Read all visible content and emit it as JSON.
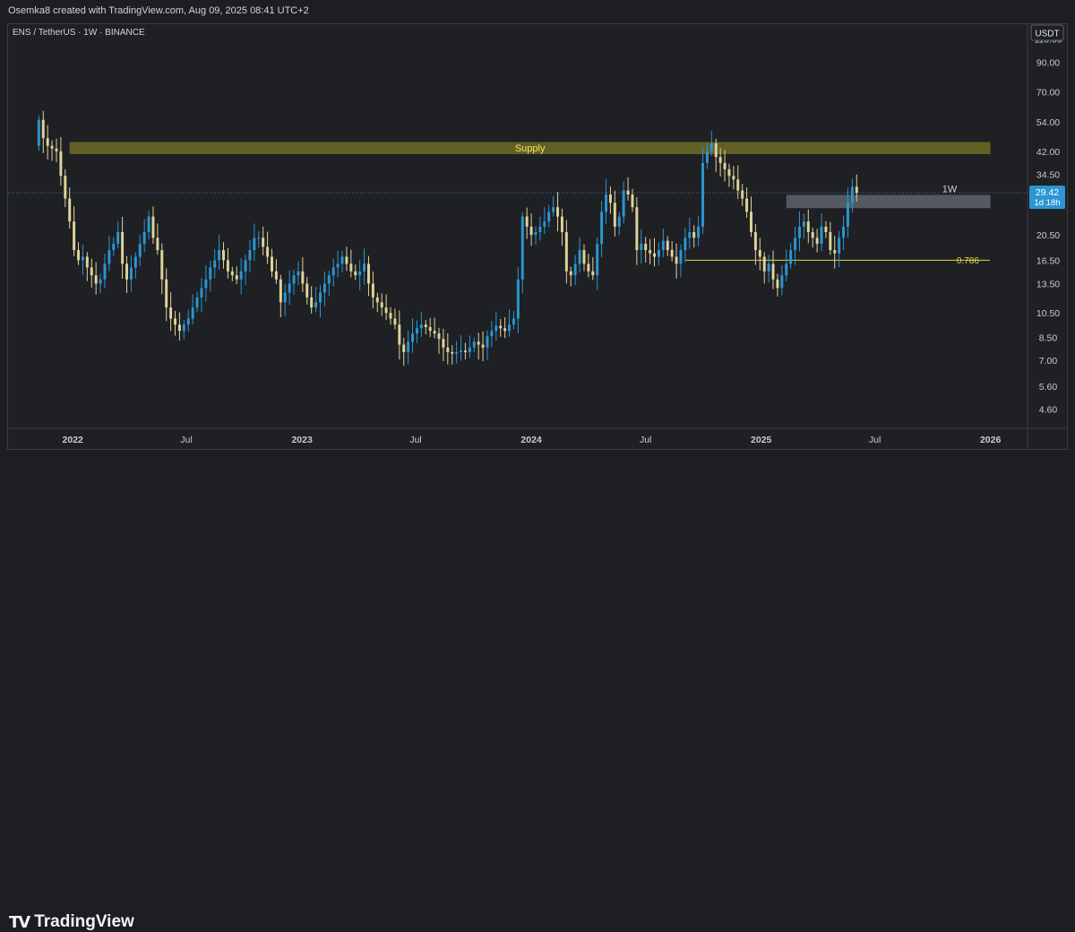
{
  "header": {
    "credit": "Osemka8 created with TradingView.com, Aug 09, 2025 08:41 UTC+2"
  },
  "footer": {
    "brand": "TradingView",
    "brand_icon": "tradingview-logo-icon"
  },
  "colors": {
    "up": "#2b96d3",
    "down": "#e0d39a",
    "background": "#1e2024",
    "supply": "#7d7a2a",
    "fib": "#e6d44a",
    "price_line": "#2b7bb9"
  },
  "chart_data": {
    "type": "candlestick",
    "title": "ENS / TetherUS · 1W · BINANCE",
    "currency": "USDT",
    "scale": "log",
    "ylim": [
      3.9,
      125
    ],
    "y_ticks": [
      110.0,
      90.0,
      70.0,
      54.0,
      42.0,
      34.5,
      20.5,
      16.5,
      13.5,
      10.5,
      8.5,
      7.0,
      5.6,
      4.6
    ],
    "x_ticks": [
      {
        "label": "2022",
        "date": "2022-01-01"
      },
      {
        "label": "Jul",
        "date": "2022-07-01"
      },
      {
        "label": "2023",
        "date": "2023-01-01"
      },
      {
        "label": "Jul",
        "date": "2023-07-01"
      },
      {
        "label": "2024",
        "date": "2024-01-01"
      },
      {
        "label": "Jul",
        "date": "2024-07-01"
      },
      {
        "label": "2025",
        "date": "2025-01-01"
      },
      {
        "label": "Jul",
        "date": "2025-07-01"
      },
      {
        "label": "2026",
        "date": "2026-01-01"
      }
    ],
    "xlim": [
      "2021-09-20",
      "2026-03-01"
    ],
    "series_start": "2021-11-08",
    "series_interval": "1W",
    "current_price": {
      "value": 29.42,
      "label": "29.42",
      "countdown": "1d 18h"
    },
    "closes": [
      55,
      47,
      44,
      43,
      42,
      34,
      28,
      23,
      18,
      16.5,
      17,
      15.5,
      14.5,
      13.5,
      14,
      16,
      18,
      19,
      21,
      16,
      14,
      15.5,
      17,
      19,
      21,
      24,
      20,
      18,
      14,
      11,
      10,
      9.5,
      9,
      9.5,
      10,
      11,
      12,
      13,
      14,
      15.5,
      16.5,
      18,
      16.5,
      15,
      14.5,
      14,
      15,
      16.5,
      18,
      20,
      20,
      18.5,
      17,
      15,
      14,
      11.5,
      12.5,
      13.5,
      14.5,
      15,
      13.5,
      12,
      11,
      11.5,
      12.5,
      13.5,
      14.5,
      15.5,
      16,
      17,
      16,
      15,
      14.5,
      15,
      16,
      13.5,
      12,
      11.5,
      11,
      10.5,
      10,
      9.5,
      8,
      7.5,
      8.2,
      8.8,
      9.2,
      9.5,
      9.3,
      9,
      8.8,
      8.4,
      7.8,
      7.5,
      7.4,
      7.5,
      7.6,
      7.5,
      7.8,
      8.2,
      8,
      7.8,
      8.6,
      9,
      9.4,
      9.2,
      9,
      9.5,
      10,
      14,
      24,
      22,
      20.5,
      21,
      22,
      23,
      25,
      26,
      24,
      21,
      15,
      14.5,
      16,
      18,
      16,
      15,
      14.5,
      19,
      25,
      29,
      27,
      22,
      24,
      30,
      29,
      26,
      18,
      19,
      18,
      17.5,
      17,
      18,
      19.5,
      18,
      17,
      16,
      18,
      20,
      21,
      20,
      22,
      38,
      42,
      45,
      40,
      38,
      36,
      34,
      33,
      30,
      28,
      25,
      21,
      18,
      17,
      15,
      16,
      14,
      13,
      14.5,
      16,
      18,
      20,
      22,
      23,
      21,
      20,
      19,
      22,
      21,
      18,
      17.5,
      20,
      22,
      27,
      31,
      29.42
    ],
    "annotations": [
      {
        "type": "zone",
        "label": "Supply",
        "from": "2021-12-27",
        "to": "2026-01-01",
        "low": 41,
        "high": 45.5
      },
      {
        "type": "zone",
        "label": "1W",
        "from": "2025-02-10",
        "to": "2026-01-01",
        "low": 25.8,
        "high": 28.9
      },
      {
        "type": "level",
        "label": "0.786",
        "value": 16.5,
        "from": "2024-09-02",
        "to": "2025-12-31"
      }
    ]
  }
}
